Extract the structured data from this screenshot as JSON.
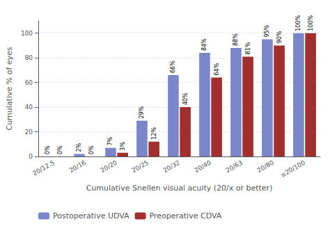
{
  "chart_data": {
    "type": "bar",
    "categories": [
      "20/12.5",
      "20/16",
      "20/20",
      "20/25",
      "20/32",
      "20/40",
      "20/63",
      "20/80",
      "≤20/100"
    ],
    "series": [
      {
        "name": "Postoperative UDVA",
        "color": "#7b86c8",
        "values": [
          0,
          2,
          7,
          29,
          66,
          84,
          88,
          95,
          100
        ],
        "value_labels": [
          "0%",
          "2%",
          "7%",
          "29%",
          "66%",
          "84%",
          "88%",
          "95%",
          "100%"
        ]
      },
      {
        "name": "Preoperative CDVA",
        "color": "#a03030",
        "values": [
          0,
          0,
          3,
          12,
          40,
          64,
          81,
          90,
          100
        ],
        "value_labels": [
          "0%",
          "0%",
          "3%",
          "12%",
          "40%",
          "64%",
          "81%",
          "90%",
          "100%"
        ]
      }
    ],
    "xlabel": "Cumulative Snellen visual acuity (20/x or better)",
    "ylabel": "Cumulative % of eyes",
    "ylim": [
      0,
      110
    ],
    "yticks": [
      0,
      20,
      40,
      60,
      80,
      100
    ],
    "grid": true,
    "data_labels": true,
    "legend": "bottom"
  }
}
